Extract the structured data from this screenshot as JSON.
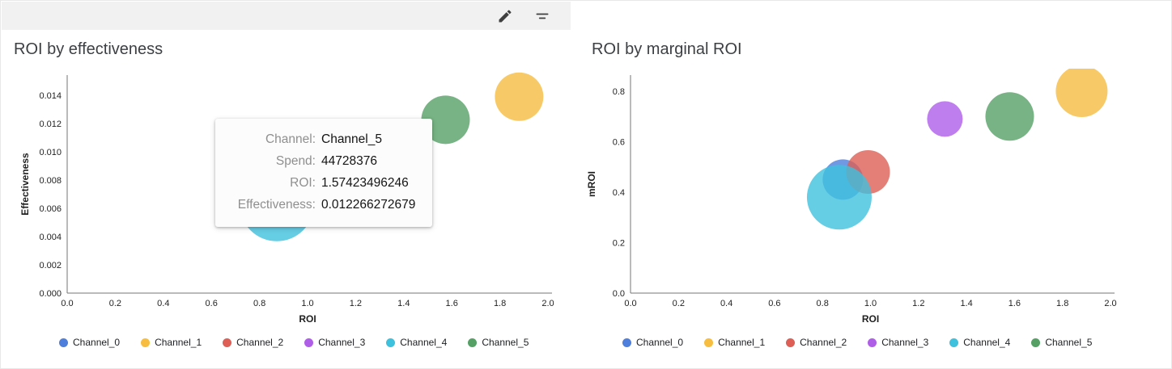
{
  "toolbar": {
    "edit_icon": "edit-pencil",
    "filter_icon": "filter-list"
  },
  "tooltip": {
    "rows": [
      {
        "label": "Channel:",
        "value": "Channel_5"
      },
      {
        "label": "Spend:",
        "value": "44728376"
      },
      {
        "label": "ROI:",
        "value": "1.57423496246"
      },
      {
        "label": "Effectiveness:",
        "value": "0.012266272679"
      }
    ]
  },
  "channels": [
    {
      "name": "Channel_0",
      "color": "#4e7fdc"
    },
    {
      "name": "Channel_1",
      "color": "#f6bd41"
    },
    {
      "name": "Channel_2",
      "color": "#dd5f56"
    },
    {
      "name": "Channel_3",
      "color": "#af5ee8"
    },
    {
      "name": "Channel_4",
      "color": "#3ec1dd"
    },
    {
      "name": "Channel_5",
      "color": "#55a065"
    }
  ],
  "chart_data": [
    {
      "type": "scatter",
      "title": "ROI by effectiveness",
      "xlabel": "ROI",
      "ylabel": "Effectiveness",
      "xlim": [
        0,
        2.0
      ],
      "ylim": [
        0,
        0.014
      ],
      "xticks": [
        "0.0",
        "0.2",
        "0.4",
        "0.6",
        "0.8",
        "1.0",
        "1.2",
        "1.4",
        "1.6",
        "1.8",
        "2.0"
      ],
      "yticks": [
        "0.000",
        "0.002",
        "0.004",
        "0.006",
        "0.008",
        "0.010",
        "0.012",
        "0.014"
      ],
      "grid": false,
      "legend_position": "bottom",
      "points": [
        {
          "channel": "Channel_0",
          "x": 0.88,
          "y": 0.0068,
          "r": 34
        },
        {
          "channel": "Channel_4",
          "x": 0.872,
          "y": 0.0063,
          "r": 46
        },
        {
          "channel": "Channel_5",
          "x": 1.574,
          "y": 0.012266,
          "r": 30
        },
        {
          "channel": "Channel_1",
          "x": 1.88,
          "y": 0.0139,
          "r": 30
        }
      ]
    },
    {
      "type": "scatter",
      "title": "ROI by marginal ROI",
      "xlabel": "ROI",
      "ylabel": "mROI",
      "xlim": [
        0,
        2.0
      ],
      "ylim": [
        0,
        0.8
      ],
      "xticks": [
        "0.0",
        "0.2",
        "0.4",
        "0.6",
        "0.8",
        "1.0",
        "1.2",
        "1.4",
        "1.6",
        "1.8",
        "2.0"
      ],
      "yticks": [
        "0.0",
        "0.2",
        "0.4",
        "0.6",
        "0.8"
      ],
      "grid": false,
      "legend_position": "bottom",
      "points": [
        {
          "channel": "Channel_0",
          "x": 0.885,
          "y": 0.45,
          "r": 25
        },
        {
          "channel": "Channel_2",
          "x": 0.99,
          "y": 0.48,
          "r": 27
        },
        {
          "channel": "Channel_4",
          "x": 0.87,
          "y": 0.38,
          "r": 40
        },
        {
          "channel": "Channel_3",
          "x": 1.31,
          "y": 0.69,
          "r": 22
        },
        {
          "channel": "Channel_5",
          "x": 1.58,
          "y": 0.7,
          "r": 30
        },
        {
          "channel": "Channel_1",
          "x": 1.88,
          "y": 0.8,
          "r": 32
        }
      ]
    }
  ]
}
